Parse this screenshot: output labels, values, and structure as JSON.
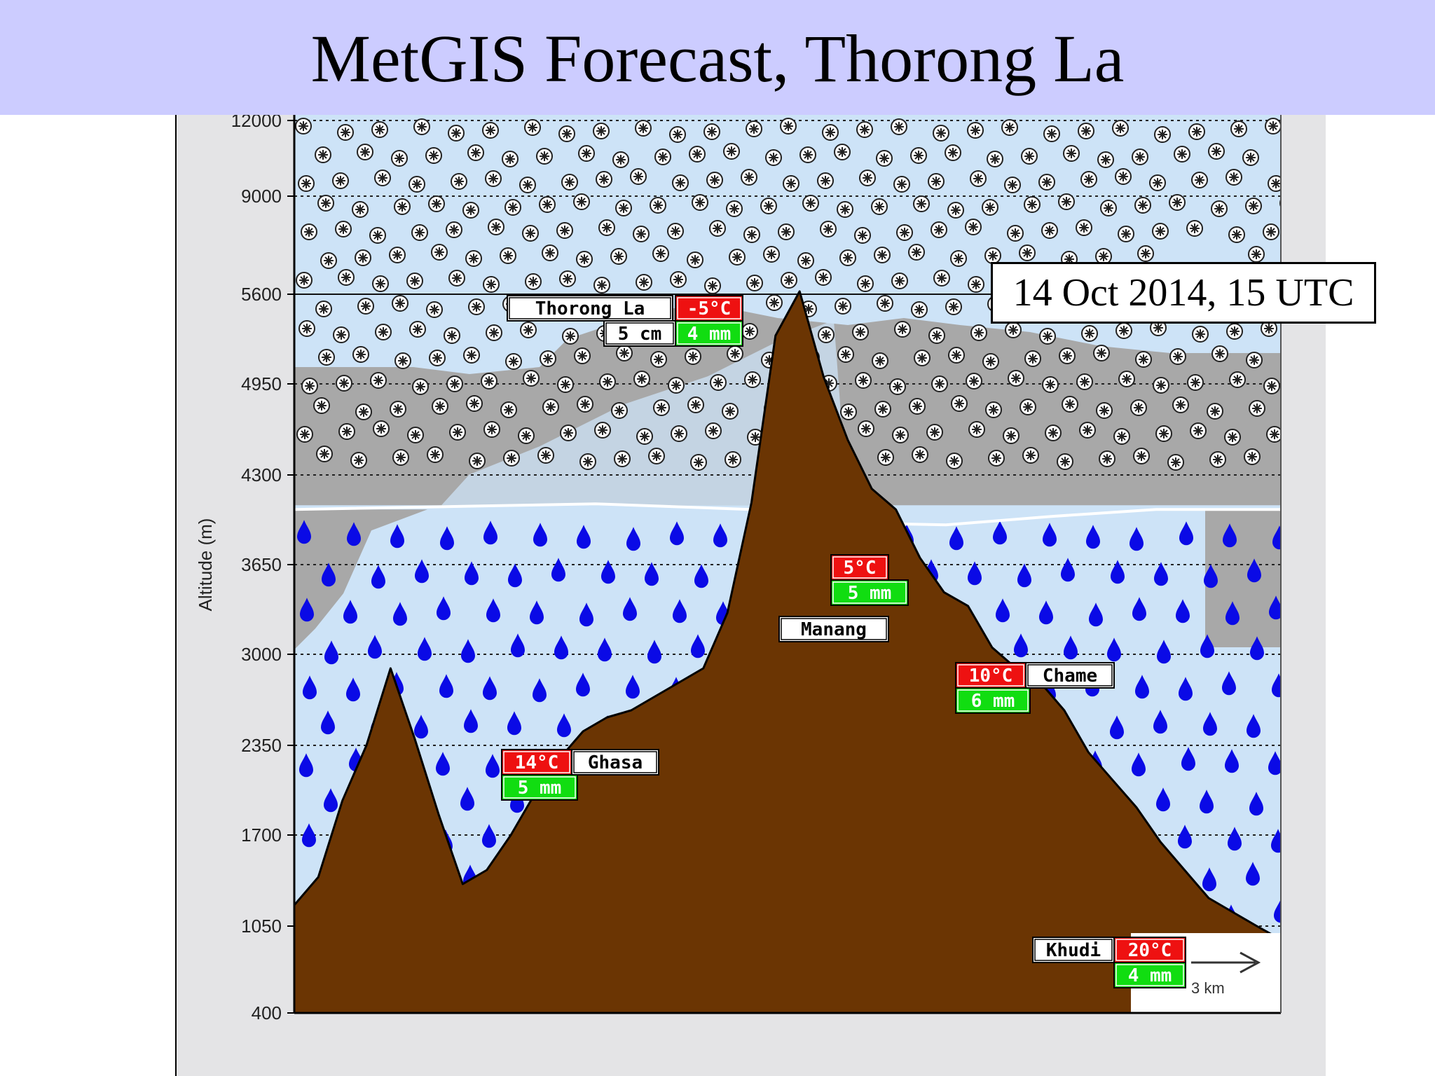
{
  "slide": {
    "title": "MetGIS Forecast, Thorong La",
    "date_label": "14 Oct 2014, 15 UTC"
  },
  "chart_data": {
    "type": "area",
    "title": "MetGIS Forecast, Thorong La",
    "ylabel": "Altitude (m)",
    "xlabel": "",
    "y_ticks": [
      400,
      1050,
      1700,
      2350,
      3000,
      3650,
      4300,
      4950,
      5600,
      9000,
      12000
    ],
    "snow_line_m": 4050,
    "scale_label": "3 km",
    "colors": {
      "terrain": "#6b3503",
      "cloud": "#a8a8a8",
      "clear_sky": "#cde3f7",
      "rain": "#0a0ae6",
      "temp_box": "#ee1111",
      "precip_box": "#11dd11"
    },
    "terrain_profile_m": [
      1200,
      1400,
      1950,
      2350,
      2900,
      2400,
      1850,
      1350,
      1450,
      1700,
      2000,
      2250,
      2450,
      2550,
      2600,
      2700,
      2800,
      2900,
      3300,
      4100,
      5300,
      5700,
      5000,
      4550,
      4200,
      4050,
      3700,
      3450,
      3350,
      3050,
      2900,
      2800,
      2600,
      2300,
      2100,
      1900,
      1650,
      1450,
      1250,
      1150,
      1050,
      950
    ],
    "locations": [
      {
        "name": "Thorong La",
        "temperature": "-5°C",
        "snow": "5 cm",
        "precipitation": "4 mm"
      },
      {
        "name": "Manang",
        "temperature": "5°C",
        "precipitation": "5 mm"
      },
      {
        "name": "Chame",
        "temperature": "10°C",
        "precipitation": "6 mm"
      },
      {
        "name": "Ghasa",
        "temperature": "14°C",
        "precipitation": "5 mm"
      },
      {
        "name": "Khudi",
        "temperature": "20°C",
        "precipitation": "4 mm"
      }
    ]
  }
}
